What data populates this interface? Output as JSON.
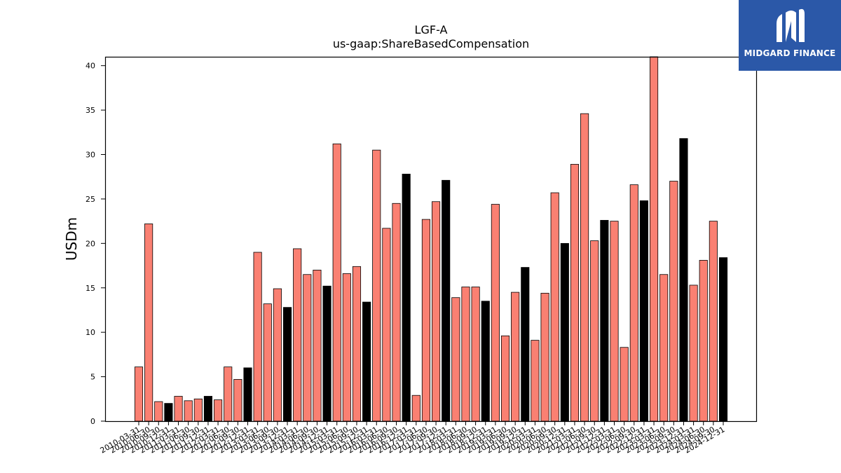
{
  "chart_data": {
    "type": "bar",
    "title": "LGF-A",
    "subtitle": "us-gaap:ShareBasedCompensation",
    "xlabel": "",
    "ylabel": "USDm",
    "ylim": [
      0,
      41
    ],
    "yticks": [
      0,
      5,
      10,
      15,
      20,
      25,
      30,
      35,
      40
    ],
    "grid": false,
    "colors": {
      "quarter": "#fa8072",
      "fiscal_year_end": "#000000"
    },
    "categories": [
      "2010-03-31",
      "2010-06-30",
      "2010-09-30",
      "2010-12-31",
      "2011-03-31",
      "2011-06-30",
      "2011-09-30",
      "2011-12-31",
      "2012-03-31",
      "2012-06-30",
      "2012-09-30",
      "2012-12-31",
      "2013-03-31",
      "2013-06-30",
      "2013-09-30",
      "2013-12-31",
      "2014-03-31",
      "2014-06-30",
      "2014-09-30",
      "2014-12-31",
      "2015-03-31",
      "2015-06-30",
      "2015-09-30",
      "2015-12-31",
      "2016-03-31",
      "2016-06-30",
      "2016-09-30",
      "2016-12-31",
      "2017-03-31",
      "2017-06-30",
      "2017-09-30",
      "2017-12-31",
      "2018-03-31",
      "2018-06-30",
      "2018-09-30",
      "2018-12-31",
      "2019-03-31",
      "2019-06-30",
      "2019-09-30",
      "2019-12-31",
      "2020-03-31",
      "2020-06-30",
      "2020-09-30",
      "2020-12-31",
      "2021-03-31",
      "2021-06-30",
      "2021-09-30",
      "2021-12-31",
      "2022-03-31",
      "2022-06-30",
      "2022-09-30",
      "2022-12-31",
      "2023-03-31",
      "2023-06-30",
      "2023-09-30",
      "2023-12-31",
      "2024-03-31",
      "2024-06-30",
      "2024-09-30",
      "2024-12-31"
    ],
    "values": [
      6.1,
      22.2,
      2.2,
      2.0,
      2.8,
      2.3,
      2.5,
      2.8,
      2.4,
      6.1,
      4.7,
      6.0,
      19.0,
      13.2,
      14.9,
      12.8,
      19.4,
      16.5,
      17.0,
      15.2,
      31.2,
      16.6,
      17.4,
      13.4,
      30.5,
      21.7,
      24.5,
      27.8,
      2.9,
      22.7,
      24.7,
      27.1,
      13.9,
      15.1,
      15.1,
      13.5,
      24.4,
      9.6,
      14.5,
      17.3,
      9.1,
      14.4,
      25.7,
      20.0,
      28.9,
      34.6,
      20.3,
      22.6,
      22.5,
      8.3,
      26.6,
      24.8,
      41.2,
      16.5,
      27.0,
      31.8,
      15.3,
      18.1,
      22.5,
      18.4
    ],
    "highlight": [
      false,
      false,
      false,
      true,
      false,
      false,
      false,
      true,
      false,
      false,
      false,
      true,
      false,
      false,
      false,
      true,
      false,
      false,
      false,
      true,
      false,
      false,
      false,
      true,
      false,
      false,
      false,
      true,
      false,
      false,
      false,
      true,
      false,
      false,
      false,
      true,
      false,
      false,
      false,
      true,
      false,
      false,
      false,
      true,
      false,
      false,
      false,
      true,
      false,
      false,
      false,
      true,
      false,
      false,
      false,
      true,
      false,
      false,
      false,
      true
    ]
  },
  "logo": {
    "text": "MIDGARD FINANCE",
    "color": "#2b58a8"
  }
}
